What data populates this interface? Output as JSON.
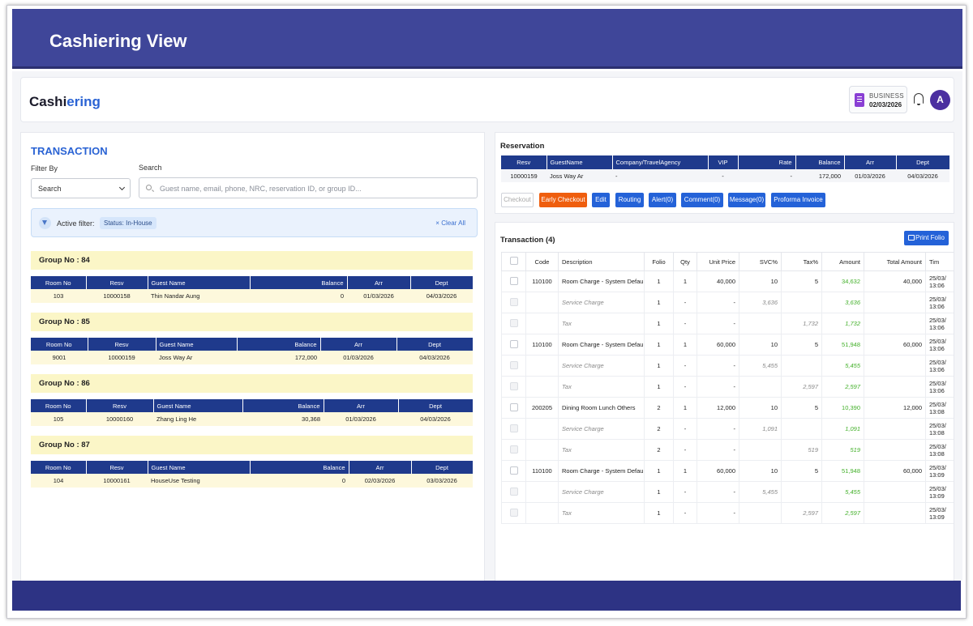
{
  "banner": {
    "title": "Cashiering View"
  },
  "header": {
    "brand_dark": "Cashi",
    "brand_blue": "ering",
    "business_label": "BUSINESS",
    "business_date": "02/03/2026",
    "avatar_letter": "A"
  },
  "left": {
    "title": "TRANSACTION",
    "filter_by_label": "Filter By",
    "filter_by_value": "Search",
    "search_label": "Search",
    "search_placeholder": "Guest name, email, phone, NRC, reservation ID, or group ID...",
    "active_filter_label": "Active filter:",
    "active_filter_chip": "Status: In-House",
    "clear_all": "Clear All",
    "columns": [
      "Room No",
      "Resv",
      "Guest Name",
      "Balance",
      "Arr",
      "Dept"
    ],
    "groups": [
      {
        "title": "Group No : 84",
        "row": {
          "room": "103",
          "resv": "10000158",
          "guest": "Thin Nandar Aung",
          "balance": "0",
          "arr": "01/03/2026",
          "dept": "04/03/2026"
        }
      },
      {
        "title": "Group No : 85",
        "row": {
          "room": "9001",
          "resv": "10000159",
          "guest": "Joss Way Ar",
          "balance": "172,000",
          "arr": "01/03/2026",
          "dept": "04/03/2026"
        }
      },
      {
        "title": "Group No : 86",
        "row": {
          "room": "105",
          "resv": "10000160",
          "guest": "Zhang Ling He",
          "balance": "30,368",
          "arr": "01/03/2026",
          "dept": "04/03/2026"
        }
      },
      {
        "title": "Group No : 87",
        "row": {
          "room": "104",
          "resv": "10000161",
          "guest": "HouseUse Testing",
          "balance": "0",
          "arr": "02/03/2026",
          "dept": "03/03/2026"
        }
      }
    ]
  },
  "reservation": {
    "title": "Reservation",
    "columns": [
      "Resv",
      "GuestName",
      "Company/TravelAgency",
      "VIP",
      "Rate",
      "Balance",
      "Arr",
      "Dept"
    ],
    "row": {
      "resv": "10000159",
      "guest": "Joss Way Ar",
      "company": "-",
      "vip": "-",
      "rate": "-",
      "balance": "172,000",
      "arr": "01/03/2026",
      "dept": "04/03/2026"
    },
    "buttons": {
      "checkout": "Checkout",
      "early_checkout": "Early Checkout",
      "edit": "Edit",
      "routing": "Routing",
      "alert": "Alert(0)",
      "comment": "Comment(0)",
      "message": "Message(0)",
      "proforma": "Proforma Invoice"
    }
  },
  "transaction": {
    "title": "Transaction (4)",
    "print_folio": "Print Folio",
    "columns": [
      "Code",
      "Description",
      "Folio",
      "Qty",
      "Unit Price",
      "SVC%",
      "Tax%",
      "Amount",
      "Total Amount",
      "Tim"
    ],
    "rows": [
      {
        "kind": "main",
        "code": "110100",
        "desc": "Room Charge - System Default",
        "folio": "1",
        "qty": "1",
        "unit": "40,000",
        "svc": "10",
        "tax": "5",
        "amount": "34,632",
        "total": "40,000",
        "time1": "25/03/",
        "time2": "13:06"
      },
      {
        "kind": "svc",
        "code": "",
        "desc": "Service Charge",
        "folio": "1",
        "qty": "-",
        "unit": "-",
        "svc": "3,636",
        "tax": "",
        "amount": "3,636",
        "total": "",
        "time1": "25/03/",
        "time2": "13:06"
      },
      {
        "kind": "tax",
        "code": "",
        "desc": "Tax",
        "folio": "1",
        "qty": "-",
        "unit": "-",
        "svc": "",
        "tax": "1,732",
        "amount": "1,732",
        "total": "",
        "time1": "25/03/",
        "time2": "13:06"
      },
      {
        "kind": "main",
        "code": "110100",
        "desc": "Room Charge - System Default",
        "folio": "1",
        "qty": "1",
        "unit": "60,000",
        "svc": "10",
        "tax": "5",
        "amount": "51,948",
        "total": "60,000",
        "time1": "25/03/",
        "time2": "13:06"
      },
      {
        "kind": "svc",
        "code": "",
        "desc": "Service Charge",
        "folio": "1",
        "qty": "-",
        "unit": "-",
        "svc": "5,455",
        "tax": "",
        "amount": "5,455",
        "total": "",
        "time1": "25/03/",
        "time2": "13:06"
      },
      {
        "kind": "tax",
        "code": "",
        "desc": "Tax",
        "folio": "1",
        "qty": "-",
        "unit": "-",
        "svc": "",
        "tax": "2,597",
        "amount": "2,597",
        "total": "",
        "time1": "25/03/",
        "time2": "13:06"
      },
      {
        "kind": "main",
        "code": "200205",
        "desc": "Dining Room Lunch Others",
        "folio": "2",
        "qty": "1",
        "unit": "12,000",
        "svc": "10",
        "tax": "5",
        "amount": "10,390",
        "total": "12,000",
        "time1": "25/03/",
        "time2": "13:08"
      },
      {
        "kind": "svc",
        "code": "",
        "desc": "Service Charge",
        "folio": "2",
        "qty": "-",
        "unit": "-",
        "svc": "1,091",
        "tax": "",
        "amount": "1,091",
        "total": "",
        "time1": "25/03/",
        "time2": "13:08"
      },
      {
        "kind": "tax",
        "code": "",
        "desc": "Tax",
        "folio": "2",
        "qty": "-",
        "unit": "-",
        "svc": "",
        "tax": "519",
        "amount": "519",
        "total": "",
        "time1": "25/03/",
        "time2": "13:08"
      },
      {
        "kind": "main",
        "code": "110100",
        "desc": "Room Charge - System Default",
        "folio": "1",
        "qty": "1",
        "unit": "60,000",
        "svc": "10",
        "tax": "5",
        "amount": "51,948",
        "total": "60,000",
        "time1": "25/03/",
        "time2": "13:09"
      },
      {
        "kind": "svc",
        "code": "",
        "desc": "Service Charge",
        "folio": "1",
        "qty": "-",
        "unit": "-",
        "svc": "5,455",
        "tax": "",
        "amount": "5,455",
        "total": "",
        "time1": "25/03/",
        "time2": "13:09"
      },
      {
        "kind": "tax",
        "code": "",
        "desc": "Tax",
        "folio": "1",
        "qty": "-",
        "unit": "-",
        "svc": "",
        "tax": "2,597",
        "amount": "2,597",
        "total": "",
        "time1": "25/03/",
        "time2": "13:09"
      }
    ]
  },
  "colors": {
    "banner": "#3f4699",
    "footer": "#2d3384",
    "table_header": "#1f3a8c",
    "accent_blue": "#2462d8",
    "orange": "#ef5e0e",
    "group_bg": "#fbf6c7",
    "balance_red": "#e53935",
    "amount_green": "#43b02a"
  },
  "icons": {
    "filter": "funnel-icon",
    "search": "search-icon",
    "bell": "bell-icon",
    "calendar": "calendar-icon",
    "printer": "printer-icon",
    "close": "close-icon",
    "chevron": "chevron-down-icon"
  }
}
